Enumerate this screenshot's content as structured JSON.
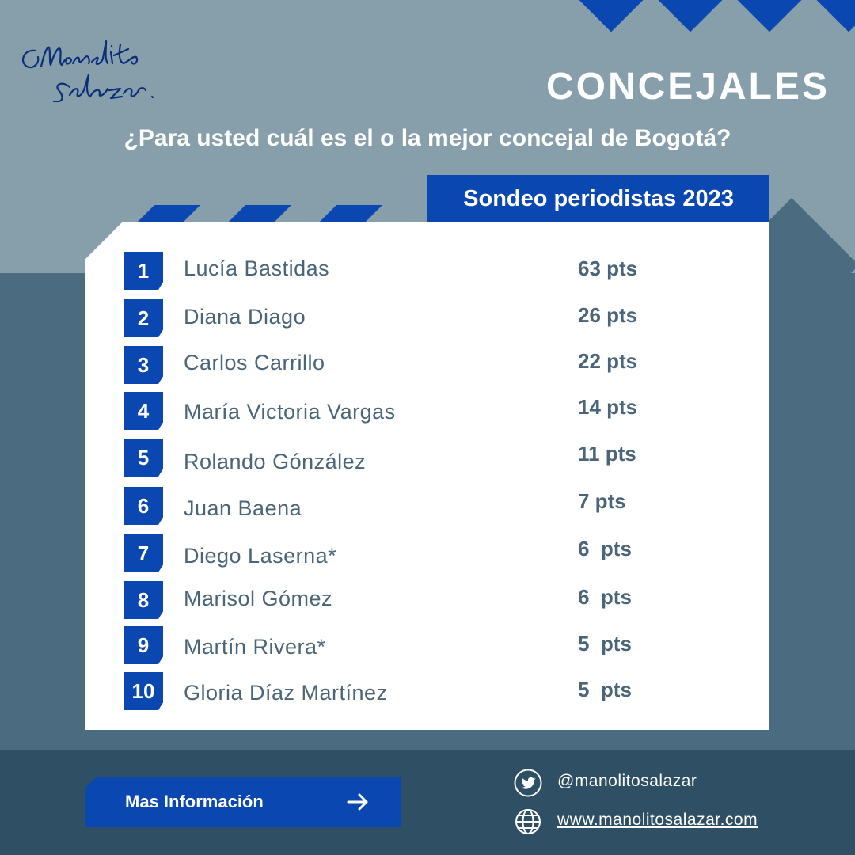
{
  "header": {
    "title": "CONCEJALES",
    "question": "¿Para usted cuál es el o la mejor concejal de Bogotá?",
    "tag": "Sondeo periodistas 2023",
    "signature": "Manolito Salazar."
  },
  "ranking": [
    {
      "rank": "1",
      "name": "Lucía Bastidas",
      "points": "63 pts"
    },
    {
      "rank": "2",
      "name": "Diana Diago",
      "points": "26 pts"
    },
    {
      "rank": "3",
      "name": "Carlos Carrillo",
      "points": "22 pts"
    },
    {
      "rank": "4",
      "name": "María Victoria Vargas",
      "points": "14 pts"
    },
    {
      "rank": "5",
      "name": "Rolando Gónzález",
      "points": "11 pts"
    },
    {
      "rank": "6",
      "name": "Juan Baena",
      "points": "7 pts"
    },
    {
      "rank": "7",
      "name": "Diego Laserna*",
      "points": "6  pts"
    },
    {
      "rank": "8",
      "name": "Marisol Gómez",
      "points": "6  pts"
    },
    {
      "rank": "9",
      "name": "Martín Rivera*",
      "points": "5  pts"
    },
    {
      "rank": "10",
      "name": "Gloria Díaz Martínez",
      "points": "5  pts"
    }
  ],
  "footer": {
    "button_label": "Mas Información",
    "button_icon": "arrow-right-icon",
    "twitter_handle": "@manolitosalazar",
    "twitter_icon": "twitter-icon",
    "website": "www.manolitosalazar.com",
    "website_icon": "globe-icon"
  },
  "colors": {
    "accent_blue": "#0a47b0",
    "background_light": "#879eab",
    "background_mid": "#4b6b80",
    "background_dark": "#2f5064",
    "text_slate": "#4a6579"
  }
}
